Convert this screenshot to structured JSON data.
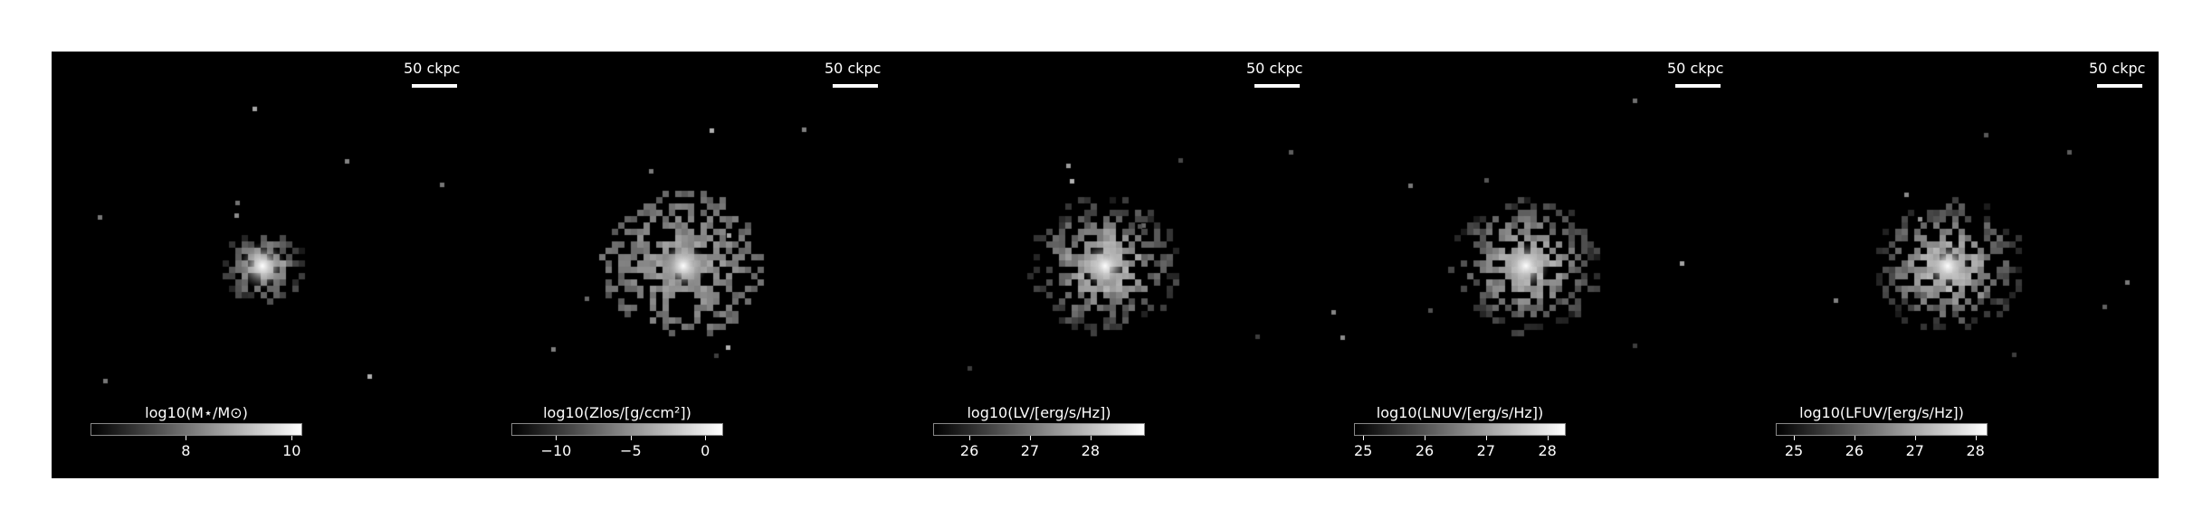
{
  "scale_bar_label": "50 ckpc",
  "panels": [
    {
      "colorbar_label": "log10(M⋆/M⊙)",
      "ticks": [
        "8",
        "10"
      ],
      "tick_values": [
        8,
        10
      ],
      "range": [
        6.2,
        10.2
      ],
      "spread": "compact"
    },
    {
      "colorbar_label": "log10(Zlos/[g/ccm²])",
      "ticks": [
        "−10",
        "−5",
        "0"
      ],
      "tick_values": [
        -10,
        -5,
        0
      ],
      "range": [
        -13,
        1.2
      ],
      "spread": "wide"
    },
    {
      "colorbar_label": "log10(LV/[erg/s/Hz])",
      "ticks": [
        "26",
        "27",
        "28"
      ],
      "tick_values": [
        26,
        27,
        28
      ],
      "range": [
        25.4,
        28.9
      ],
      "spread": "medium"
    },
    {
      "colorbar_label": "log10(LNUV/[erg/s/Hz])",
      "ticks": [
        "25",
        "26",
        "27",
        "28"
      ],
      "tick_values": [
        25,
        26,
        27,
        28
      ],
      "range": [
        24.85,
        28.3
      ],
      "spread": "medium"
    },
    {
      "colorbar_label": "log10(LFUV/[erg/s/Hz])",
      "ticks": [
        "25",
        "26",
        "27",
        "28"
      ],
      "tick_values": [
        25,
        26,
        27,
        28
      ],
      "range": [
        24.7,
        28.2
      ],
      "spread": "medium"
    }
  ]
}
